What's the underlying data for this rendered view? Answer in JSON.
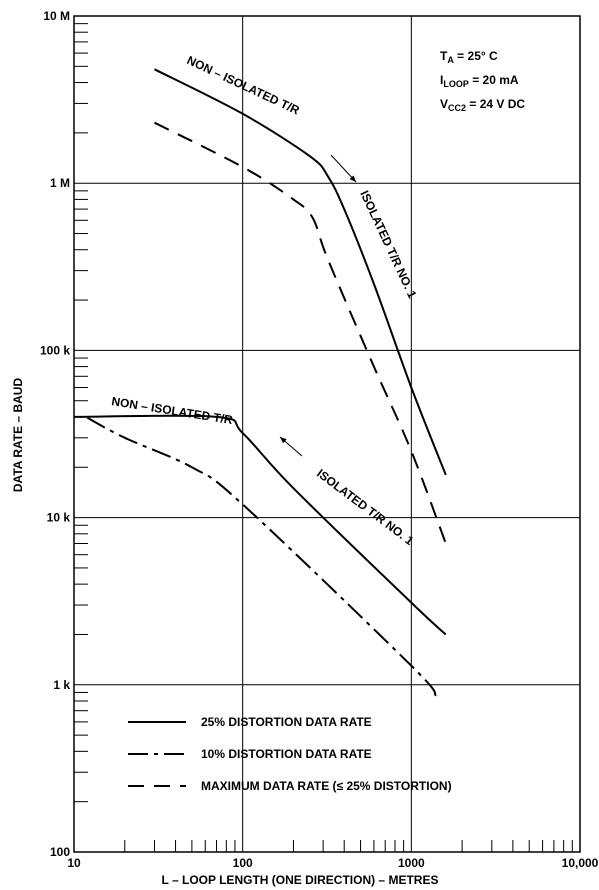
{
  "chart_data": {
    "type": "line",
    "x_scale": "log",
    "y_scale": "log",
    "xlim": [
      10,
      10000
    ],
    "ylim": [
      100,
      10000000
    ],
    "xlabel": "L – LOOP LENGTH (ONE DIRECTION) – METRES",
    "ylabel": "DATA RATE – BAUD",
    "x_ticks": [
      {
        "value": 10,
        "label": "10"
      },
      {
        "value": 100,
        "label": "100"
      },
      {
        "value": 1000,
        "label": "1000"
      },
      {
        "value": 10000,
        "label": "10,000"
      }
    ],
    "y_ticks": [
      {
        "value": 100,
        "label": "100"
      },
      {
        "value": 1000,
        "label": "1 k"
      },
      {
        "value": 10000,
        "label": "10 k"
      },
      {
        "value": 100000,
        "label": "100 k"
      },
      {
        "value": 1000000,
        "label": "1 M"
      },
      {
        "value": 10000000,
        "label": "10 M"
      }
    ],
    "grid": "major decades",
    "legend_position": "bottom-left",
    "conditions": [
      {
        "main": "T",
        "sub": "A",
        "rest": " = 25° C"
      },
      {
        "main": "I",
        "sub": "LOOP",
        "rest": " = 20 mA"
      },
      {
        "main": "V",
        "sub": "CC2",
        "rest": " = 24 V DC"
      }
    ],
    "legend": [
      {
        "label": "25% DISTORTION DATA RATE",
        "style": "solid"
      },
      {
        "label": "10% DISTORTION DATA RATE",
        "style": "dash-dot"
      },
      {
        "label": "MAXIMUM DATA RATE (≤ 25% DISTORTION)",
        "style": "dashed"
      }
    ],
    "series": [
      {
        "style": "solid",
        "group": "upper",
        "points": [
          [
            30,
            4800000
          ],
          [
            100,
            2600000
          ],
          [
            250,
            1450000
          ],
          [
            320,
            1100000
          ],
          [
            400,
            700000
          ],
          [
            600,
            250000
          ],
          [
            1000,
            60000
          ],
          [
            1600,
            18000
          ]
        ]
      },
      {
        "style": "dashed",
        "group": "upper",
        "points": [
          [
            30,
            2300000
          ],
          [
            100,
            1250000
          ],
          [
            200,
            800000
          ],
          [
            260,
            620000
          ],
          [
            320,
            350000
          ],
          [
            600,
            80000
          ],
          [
            1000,
            25000
          ],
          [
            1600,
            7000
          ]
        ]
      },
      {
        "style": "solid",
        "group": "lower",
        "points": [
          [
            10,
            40000
          ],
          [
            70,
            40000
          ],
          [
            100,
            32000
          ],
          [
            200,
            15000
          ],
          [
            1000,
            3100
          ],
          [
            1600,
            2000
          ]
        ]
      },
      {
        "style": "dash-dot",
        "group": "lower",
        "points": [
          [
            12,
            39500
          ],
          [
            20,
            30000
          ],
          [
            50,
            20000
          ],
          [
            100,
            12000
          ],
          [
            1000,
            1300
          ],
          [
            1400,
            860
          ]
        ]
      }
    ],
    "annotations": [
      {
        "text": "NON – ISOLATED T/R",
        "group": "upper"
      },
      {
        "text": "ISOLATED T/R NO. 1",
        "group": "upper"
      },
      {
        "text": "NON – ISOLATED T/R",
        "group": "lower"
      },
      {
        "text": "ISOLATED T/R NO. 1",
        "group": "lower"
      }
    ]
  }
}
